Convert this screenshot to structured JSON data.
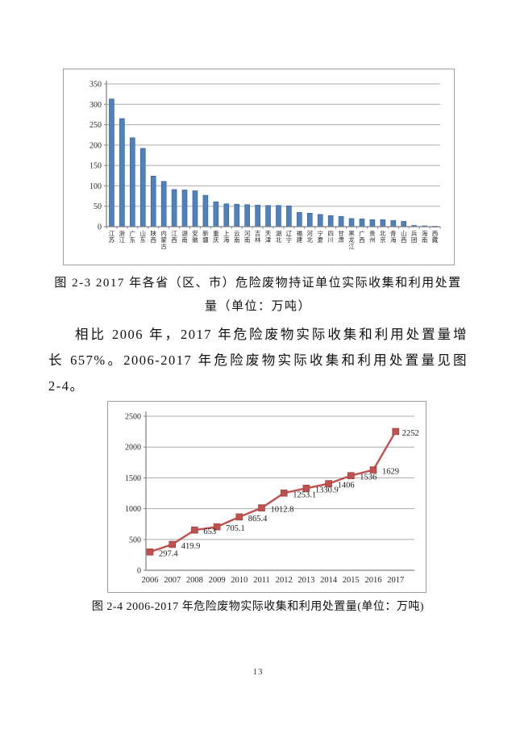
{
  "page": {
    "number": "13"
  },
  "figure1": {
    "caption_line1": "图 2-3   2017 年各省（区、市）危险废物持证单位实际收集和利用处置",
    "caption_line2": "量（单位：万吨）"
  },
  "paragraph": {
    "lines": [
      "相比 2006 年，2017 年危险废物实际收集和利用处置量增",
      "长 657%。2006-2017 年危险废物实际收集和利用处置量见图",
      "2-4。"
    ]
  },
  "figure2": {
    "caption": "图 2-4 2006-2017 年危险废物实际收集和利用处置量(单位：万吨)"
  },
  "chart_data": [
    {
      "type": "bar",
      "title": "2017 年各省（区、市）危险废物持证单位实际收集和利用处置量（单位：万吨）",
      "categories": [
        "江苏",
        "浙江",
        "广东",
        "山东",
        "陕西",
        "内蒙古",
        "江西",
        "湖南",
        "安徽",
        "新疆",
        "重庆",
        "上海",
        "云南",
        "河南",
        "吉林",
        "天津",
        "湖北",
        "辽宁",
        "福建",
        "河北",
        "宁夏",
        "四川",
        "甘肃",
        "黑龙江",
        "广西",
        "贵州",
        "北京",
        "青海",
        "山西",
        "兵团",
        "海南",
        "西藏"
      ],
      "values": [
        313,
        265,
        218,
        192,
        124,
        111,
        91,
        90,
        88,
        77,
        61,
        56,
        55,
        54,
        53,
        52,
        52,
        51,
        35,
        33,
        30,
        27,
        25,
        20,
        19,
        17,
        17,
        15,
        13,
        3,
        2,
        1
      ],
      "xlabel": "",
      "ylabel": "",
      "ylim": [
        0,
        350
      ],
      "ytick_step": 50,
      "grid": true,
      "legend": "none",
      "bar_color": "#4f81bd",
      "bar_edge_color": "#2f5e96",
      "grid_color": "#ababab",
      "axis_color": "#7f7f7f"
    },
    {
      "type": "line",
      "title": "2006-2017 年危险废物实际收集和利用处置量(单位：万吨)",
      "x": [
        "2006",
        "2007",
        "2008",
        "2009",
        "2010",
        "2011",
        "2012",
        "2013",
        "2014",
        "2015",
        "2016",
        "2017"
      ],
      "values": [
        297.4,
        419.9,
        653,
        705.1,
        865.4,
        1012.8,
        1253.1,
        1330.9,
        1406,
        1536,
        1629,
        2252
      ],
      "data_labels": [
        "297.4",
        "419.9",
        "653",
        "705.1",
        "865.4",
        "1012.8",
        "1253.1",
        "1330.9",
        "1406",
        "1536",
        "1629",
        "2252"
      ],
      "xlabel": "",
      "ylabel": "",
      "ylim": [
        0,
        2500
      ],
      "ytick_step": 500,
      "grid": true,
      "legend": "none",
      "line_color": "#c0504d",
      "marker": "square",
      "marker_color": "#c0504d",
      "grid_color": "#ababab",
      "axis_color": "#7f7f7f"
    }
  ]
}
